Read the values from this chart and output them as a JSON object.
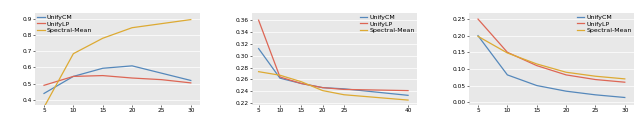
{
  "plot1": {
    "x": [
      5,
      10,
      15,
      20,
      25,
      30
    ],
    "UnifyCM": [
      0.44,
      0.545,
      0.595,
      0.61,
      0.565,
      0.52
    ],
    "UnifyLP": [
      0.49,
      0.545,
      0.55,
      0.535,
      0.525,
      0.505
    ],
    "SpectralMean": [
      0.355,
      0.685,
      0.78,
      0.845,
      0.87,
      0.895
    ],
    "ylim": [
      0.37,
      0.935
    ],
    "yticks": [
      0.4,
      0.5,
      0.6,
      0.7,
      0.8,
      0.9
    ],
    "xlim": [
      3.5,
      31.5
    ],
    "xticks": [
      5,
      10,
      15,
      20,
      25,
      30
    ],
    "legend_loc": "upper left"
  },
  "plot2": {
    "x": [
      5,
      10,
      15,
      20,
      25,
      40
    ],
    "UnifyCM": [
      0.312,
      0.262,
      0.253,
      0.246,
      0.244,
      0.233
    ],
    "UnifyLP": [
      0.36,
      0.264,
      0.253,
      0.246,
      0.243,
      0.241
    ],
    "SpectralMean": [
      0.273,
      0.267,
      0.256,
      0.241,
      0.234,
      0.225
    ],
    "ylim": [
      0.217,
      0.372
    ],
    "yticks": [
      0.22,
      0.24,
      0.26,
      0.28,
      0.3,
      0.32,
      0.34,
      0.36
    ],
    "xlim": [
      3.5,
      42
    ],
    "xticks": [
      5,
      10,
      15,
      20,
      25,
      40
    ],
    "legend_loc": "upper right"
  },
  "plot3": {
    "x": [
      5,
      10,
      15,
      20,
      25,
      30
    ],
    "UnifyCM": [
      0.2,
      0.082,
      0.05,
      0.033,
      0.022,
      0.014
    ],
    "UnifyLP": [
      0.25,
      0.15,
      0.11,
      0.082,
      0.068,
      0.06
    ],
    "SpectralMean": [
      0.198,
      0.148,
      0.115,
      0.09,
      0.078,
      0.07
    ],
    "ylim": [
      -0.008,
      0.268
    ],
    "yticks": [
      0.0,
      0.05,
      0.1,
      0.15,
      0.2,
      0.25
    ],
    "xlim": [
      3.5,
      31.5
    ],
    "xticks": [
      5,
      10,
      15,
      20,
      25,
      30
    ],
    "legend_loc": "upper right"
  },
  "colors": {
    "UnifyCM": "#5588bb",
    "UnifyLP": "#dd6655",
    "SpectralMean": "#ddaa33"
  },
  "legend_labels": [
    "UnifyCM",
    "UnifyLP",
    "Spectral-Mean"
  ],
  "bg_color": "#e8e8e8",
  "linewidth": 0.9,
  "tick_fontsize": 4.2,
  "legend_fontsize": 4.5
}
